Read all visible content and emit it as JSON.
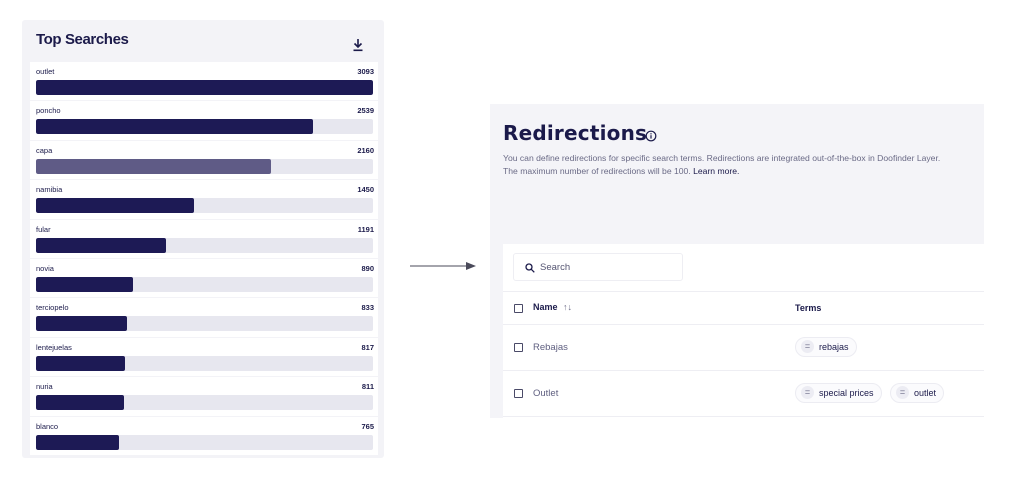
{
  "top_searches": {
    "title": "Top Searches",
    "download_icon": "download-icon",
    "max_value": 3093,
    "items": [
      {
        "term": "outlet",
        "count": "3093",
        "value": 3093
      },
      {
        "term": "poncho",
        "count": "2539",
        "value": 2539
      },
      {
        "term": "capa",
        "count": "2160",
        "value": 2160,
        "highlight": true
      },
      {
        "term": "namibia",
        "count": "1450",
        "value": 1450
      },
      {
        "term": "fular",
        "count": "1191",
        "value": 1191
      },
      {
        "term": "novia",
        "count": "890",
        "value": 890
      },
      {
        "term": "terciopelo",
        "count": "833",
        "value": 833
      },
      {
        "term": "lentejuelas",
        "count": "817",
        "value": 817
      },
      {
        "term": "nuria",
        "count": "811",
        "value": 811
      },
      {
        "term": "blanco",
        "count": "765",
        "value": 765
      }
    ],
    "colors": {
      "bar": "#1d1a55",
      "bar_highlight": "#5f5b86",
      "track": "#e7e7ef"
    }
  },
  "redirections": {
    "title": "Redirections",
    "info_icon": "info-icon",
    "description": "You can define redirections for specific search terms. Redirections are integrated out-of-the-box in Doofinder Layer. The maximum number of redirections will be 100.",
    "learn_more": "Learn more.",
    "search": {
      "placeholder": "Search",
      "icon": "search-icon"
    },
    "columns": {
      "name": "Name",
      "sort_icon": "sort-icon",
      "terms": "Terms"
    },
    "rows": [
      {
        "name": "Rebajas",
        "terms": [
          "rebajas"
        ]
      },
      {
        "name": "Outlet",
        "terms": [
          "special prices",
          "outlet"
        ]
      }
    ]
  }
}
